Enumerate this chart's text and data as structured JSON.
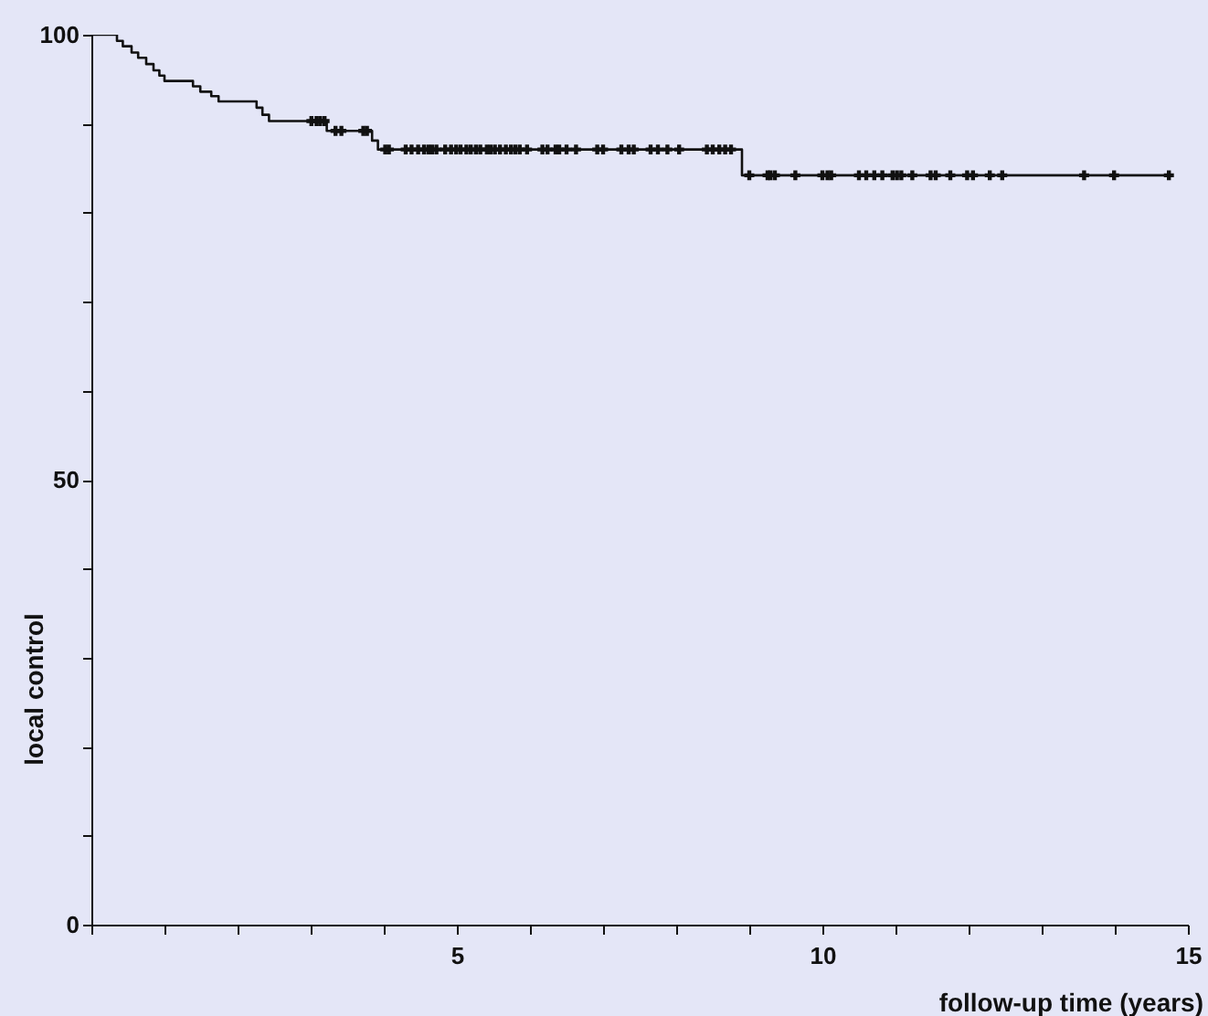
{
  "chart_data": {
    "type": "step",
    "xlabel": "follow-up time (years)",
    "ylabel": "local control",
    "xlim": [
      0,
      15
    ],
    "ylim": [
      0,
      100
    ],
    "xticks": [
      {
        "value": 0,
        "label": null
      },
      {
        "value": 1,
        "label": null
      },
      {
        "value": 2,
        "label": null
      },
      {
        "value": 3,
        "label": null
      },
      {
        "value": 4,
        "label": null
      },
      5,
      {
        "value": 6,
        "label": null
      },
      {
        "value": 7,
        "label": null
      },
      {
        "value": 8,
        "label": null
      },
      {
        "value": 9,
        "label": null
      },
      10,
      {
        "value": 11,
        "label": null
      },
      {
        "value": 12,
        "label": null
      },
      {
        "value": 13,
        "label": null
      },
      {
        "value": 14,
        "label": null
      },
      15
    ],
    "yticks": [
      0,
      {
        "value": 10,
        "label": null
      },
      {
        "value": 20,
        "label": null
      },
      {
        "value": 30,
        "label": null
      },
      {
        "value": 40,
        "label": null
      },
      50,
      {
        "value": 60,
        "label": null
      },
      {
        "value": 70,
        "label": null
      },
      {
        "value": 80,
        "label": null
      },
      {
        "value": 90,
        "label": null
      },
      100
    ],
    "grid": false,
    "series": [
      {
        "color": "#111111",
        "x": [
          0,
          0.35,
          0.43,
          0.55,
          0.64,
          0.75,
          0.85,
          0.93,
          1.0,
          1.39,
          1.49,
          1.64,
          1.74,
          2.26,
          2.34,
          2.43,
          3.22,
          3.84,
          3.92,
          8.9,
          14.74
        ],
        "values": [
          100,
          99.3,
          98.7,
          98.0,
          97.4,
          96.7,
          96.0,
          95.4,
          94.8,
          94.2,
          93.6,
          93.1,
          92.5,
          91.8,
          91.0,
          90.3,
          89.2,
          88.1,
          87.1,
          84.2,
          84.2
        ]
      },
      {
        "type": "scatter",
        "marker": "cross",
        "color": "#111111",
        "x": [
          3.01,
          3.08,
          3.13,
          3.19,
          3.34,
          3.42,
          3.72,
          3.77,
          4.02,
          4.07,
          4.3,
          4.38,
          4.47,
          4.55,
          4.61,
          4.66,
          4.72,
          4.84,
          4.92,
          4.99,
          5.05,
          5.13,
          5.19,
          5.26,
          5.32,
          5.41,
          5.46,
          5.52,
          5.59,
          5.67,
          5.74,
          5.8,
          5.86,
          5.96,
          6.17,
          6.24,
          6.35,
          6.4,
          6.5,
          6.63,
          6.92,
          7.0,
          7.25,
          7.35,
          7.42,
          7.65,
          7.75,
          7.88,
          8.04,
          8.42,
          8.5,
          8.59,
          8.67,
          8.75,
          9.0,
          9.25,
          9.29,
          9.35,
          9.63,
          10.0,
          10.07,
          10.12,
          10.5,
          10.6,
          10.71,
          10.82,
          10.96,
          11.02,
          11.08,
          11.23,
          11.48,
          11.55,
          11.75,
          11.98,
          12.06,
          12.29,
          12.46,
          13.58,
          13.99,
          14.74
        ],
        "values": [
          90.3,
          90.3,
          90.3,
          90.3,
          89.2,
          89.2,
          89.2,
          89.2,
          87.1,
          87.1,
          87.1,
          87.1,
          87.1,
          87.1,
          87.1,
          87.1,
          87.1,
          87.1,
          87.1,
          87.1,
          87.1,
          87.1,
          87.1,
          87.1,
          87.1,
          87.1,
          87.1,
          87.1,
          87.1,
          87.1,
          87.1,
          87.1,
          87.1,
          87.1,
          87.1,
          87.1,
          87.1,
          87.1,
          87.1,
          87.1,
          87.1,
          87.1,
          87.1,
          87.1,
          87.1,
          87.1,
          87.1,
          87.1,
          87.1,
          87.1,
          87.1,
          87.1,
          87.1,
          87.1,
          84.2,
          84.2,
          84.2,
          84.2,
          84.2,
          84.2,
          84.2,
          84.2,
          84.2,
          84.2,
          84.2,
          84.2,
          84.2,
          84.2,
          84.2,
          84.2,
          84.2,
          84.2,
          84.2,
          84.2,
          84.2,
          84.2,
          84.2,
          84.2,
          84.2,
          84.2
        ]
      }
    ]
  }
}
